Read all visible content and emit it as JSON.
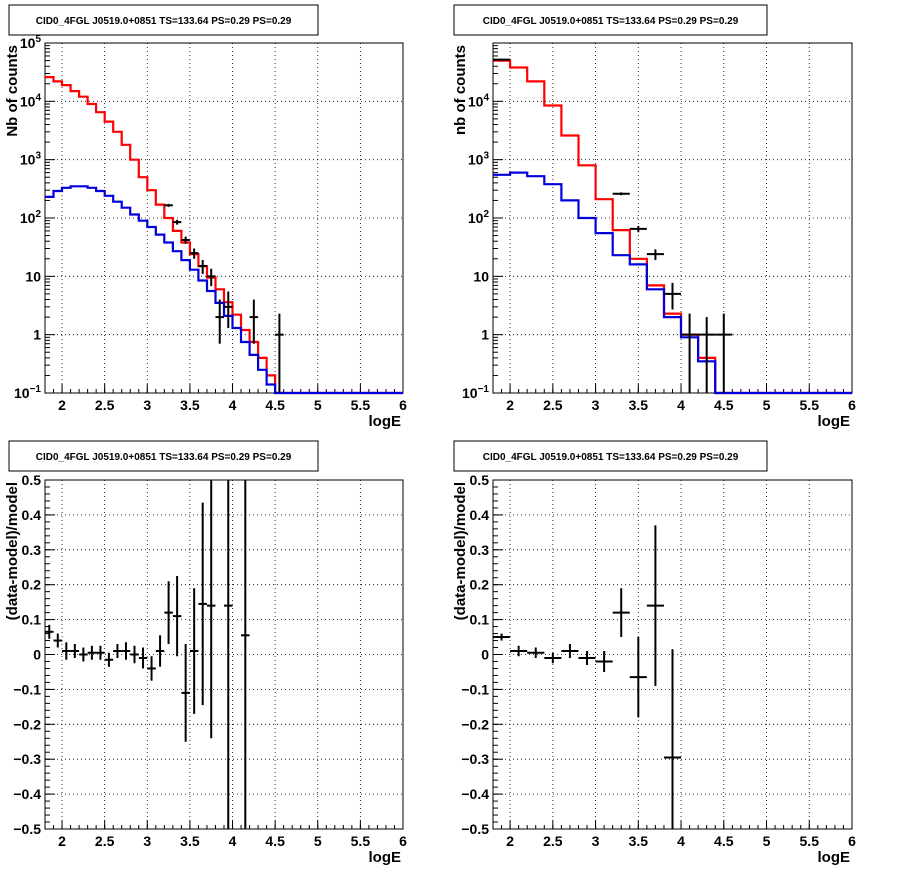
{
  "chart_data": [
    {
      "type": "line",
      "title": "CID0_4FGL J0519.0+0851 TS=133.64 PS=0.29 PS=0.29",
      "xlabel": "logE",
      "ylabel": "Nb of counts",
      "xlim": [
        1.8,
        6
      ],
      "ylim": [
        0.1,
        100000
      ],
      "yscale": "log",
      "grid": true,
      "x_ticks": [
        "2",
        "2.5",
        "3",
        "3.5",
        "4",
        "4.5",
        "5",
        "5.5",
        "6"
      ],
      "y_ticks": [
        "10^-1",
        "1",
        "10",
        "10^2",
        "10^3",
        "10^4",
        "10^5"
      ],
      "bin_edges": [
        1.8,
        1.9,
        2.0,
        2.1,
        2.2,
        2.3,
        2.4,
        2.5,
        2.6,
        2.7,
        2.8,
        2.9,
        3.0,
        3.1,
        3.2,
        3.3,
        3.4,
        3.5,
        3.6,
        3.7,
        3.8,
        3.9,
        4.0,
        4.1,
        4.2,
        4.3,
        4.4,
        4.5,
        4.6,
        4.7,
        4.8,
        4.9,
        5.0,
        5.1,
        5.2,
        5.3,
        5.4,
        5.5,
        5.6,
        5.7,
        5.8,
        5.9,
        6.0
      ],
      "series": [
        {
          "color": "#ff0000",
          "values": [
            26000,
            22000,
            19000,
            15000,
            12000,
            9000,
            6500,
            4500,
            3000,
            1800,
            1000,
            500,
            300,
            170,
            100,
            60,
            38,
            24,
            15,
            9.5,
            6,
            3.6,
            2.2,
            1.2,
            0.75,
            0.4,
            0.2,
            0.1,
            0.1,
            0.1,
            0.1,
            0.1,
            0.1,
            0.1,
            0.1,
            0.1,
            0.1,
            0.1,
            0.1,
            0.1,
            0.1,
            0.1
          ]
        },
        {
          "color": "#0000dd",
          "values": [
            230,
            290,
            330,
            350,
            350,
            330,
            290,
            240,
            190,
            150,
            115,
            90,
            70,
            52,
            38,
            27,
            19,
            13,
            8.5,
            5.6,
            3.5,
            2.1,
            1.3,
            0.75,
            0.45,
            0.25,
            0.14,
            0.1,
            0.1,
            0.1,
            0.1,
            0.1,
            0.1,
            0.1,
            0.1,
            0.1,
            0.1,
            0.1,
            0.1,
            0.1,
            0.1,
            0.1
          ]
        }
      ],
      "data_points": [
        {
          "x": 3.25,
          "y": 165,
          "ylo": 155,
          "yhi": 175
        },
        {
          "x": 3.35,
          "y": 85,
          "ylo": 77,
          "yhi": 93
        },
        {
          "x": 3.45,
          "y": 42,
          "ylo": 36,
          "yhi": 48
        },
        {
          "x": 3.55,
          "y": 25,
          "ylo": 20,
          "yhi": 30
        },
        {
          "x": 3.65,
          "y": 15,
          "ylo": 11,
          "yhi": 19
        },
        {
          "x": 3.75,
          "y": 10,
          "ylo": 6.8,
          "yhi": 13.5
        },
        {
          "x": 3.85,
          "y": 2,
          "ylo": 0.7,
          "yhi": 4.0
        },
        {
          "x": 3.95,
          "y": 3,
          "ylo": 1.3,
          "yhi": 5.5
        },
        {
          "x": 4.25,
          "y": 2,
          "ylo": 0.7,
          "yhi": 4.0
        },
        {
          "x": 4.55,
          "y": 1,
          "ylo": 0.1,
          "yhi": 2.3
        }
      ]
    },
    {
      "type": "line",
      "title": "CID0_4FGL J0519.0+0851 TS=133.64 PS=0.29 PS=0.29",
      "xlabel": "logE",
      "ylabel": "nb of counts",
      "xlim": [
        1.8,
        6
      ],
      "ylim": [
        0.1,
        100000
      ],
      "yscale": "log",
      "grid": true,
      "x_ticks": [
        "2",
        "2.5",
        "3",
        "3.5",
        "4",
        "4.5",
        "5",
        "5.5",
        "6"
      ],
      "y_ticks": [
        "10^-1",
        "1",
        "10",
        "10^2",
        "10^3",
        "10^4"
      ],
      "bin_edges": [
        1.8,
        2.0,
        2.2,
        2.4,
        2.6,
        2.8,
        3.0,
        3.2,
        3.4,
        3.6,
        3.8,
        4.0,
        4.2,
        4.4,
        4.6,
        4.8,
        5.0,
        5.2,
        5.4,
        5.6,
        5.8,
        6.0
      ],
      "series": [
        {
          "color": "#ff0000",
          "values": [
            50000,
            38000,
            22000,
            8500,
            2600,
            800,
            210,
            62,
            20,
            7,
            2.3,
            1.0,
            0.4,
            0.1,
            0.1,
            0.1,
            0.1,
            0.1,
            0.1,
            0.1,
            0.1
          ]
        },
        {
          "color": "#0000dd",
          "values": [
            550,
            600,
            520,
            380,
            200,
            100,
            55,
            23,
            16,
            6,
            2.0,
            0.9,
            0.35,
            0.1,
            0.1,
            0.1,
            0.1,
            0.1,
            0.1,
            0.1,
            0.1
          ]
        }
      ],
      "data_points": [
        {
          "x": 1.9,
          "y": 52000,
          "ylo": 51500,
          "yhi": 52500
        },
        {
          "x": 3.3,
          "y": 260,
          "ylo": 245,
          "yhi": 275
        },
        {
          "x": 3.5,
          "y": 65,
          "ylo": 57,
          "yhi": 73
        },
        {
          "x": 3.7,
          "y": 24,
          "ylo": 19,
          "yhi": 29
        },
        {
          "x": 3.9,
          "y": 5,
          "ylo": 2.7,
          "yhi": 7.7
        },
        {
          "x": 4.1,
          "y": 1,
          "ylo": 0.1,
          "yhi": 2.3
        },
        {
          "x": 4.3,
          "y": 1,
          "ylo": 0.1,
          "yhi": 2.0
        },
        {
          "x": 4.5,
          "y": 1,
          "ylo": 0.1,
          "yhi": 2.3
        }
      ]
    },
    {
      "type": "scatter",
      "title": "CID0_4FGL J0519.0+0851 TS=133.64 PS=0.29 PS=0.29",
      "xlabel": "logE",
      "ylabel": "(data-model)/model",
      "xlim": [
        1.8,
        6
      ],
      "ylim": [
        -0.5,
        0.5
      ],
      "grid": true,
      "x_ticks": [
        "2",
        "2.5",
        "3",
        "3.5",
        "4",
        "4.5",
        "5",
        "5.5",
        "6"
      ],
      "y_ticks": [
        "−0.5",
        "−0.4",
        "−0.3",
        "−0.2",
        "−0.1",
        "0",
        "0.1",
        "0.2",
        "0.3",
        "0.4",
        "0.5"
      ],
      "xerr": 0.05,
      "points": [
        {
          "x": 1.85,
          "y": 0.065,
          "err": 0.02
        },
        {
          "x": 1.95,
          "y": 0.04,
          "err": 0.02
        },
        {
          "x": 2.05,
          "y": 0.01,
          "err": 0.025
        },
        {
          "x": 2.15,
          "y": 0.01,
          "err": 0.02
        },
        {
          "x": 2.25,
          "y": 0.0,
          "err": 0.02
        },
        {
          "x": 2.35,
          "y": 0.005,
          "err": 0.02
        },
        {
          "x": 2.45,
          "y": 0.005,
          "err": 0.02
        },
        {
          "x": 2.55,
          "y": -0.015,
          "err": 0.02
        },
        {
          "x": 2.65,
          "y": 0.01,
          "err": 0.02
        },
        {
          "x": 2.75,
          "y": 0.01,
          "err": 0.025
        },
        {
          "x": 2.85,
          "y": 0.0,
          "err": 0.025
        },
        {
          "x": 2.95,
          "y": -0.01,
          "err": 0.03
        },
        {
          "x": 3.05,
          "y": -0.04,
          "err": 0.035
        },
        {
          "x": 3.15,
          "y": 0.01,
          "err": 0.045
        },
        {
          "x": 3.25,
          "y": 0.12,
          "err": 0.09
        },
        {
          "x": 3.35,
          "y": 0.11,
          "err": 0.115
        },
        {
          "x": 3.45,
          "y": -0.11,
          "err": 0.14
        },
        {
          "x": 3.55,
          "y": 0.01,
          "err": 0.18
        },
        {
          "x": 3.65,
          "y": 0.145,
          "err": 0.29
        },
        {
          "x": 3.75,
          "y": 0.14,
          "err": 0.38
        },
        {
          "x": 3.95,
          "y": 0.14,
          "err": 0.9
        },
        {
          "x": 4.15,
          "y": 0.055,
          "err": 1.2
        }
      ]
    },
    {
      "type": "scatter",
      "title": "CID0_4FGL J0519.0+0851 TS=133.64 PS=0.29 PS=0.29",
      "xlabel": "logE",
      "ylabel": "(data-model)/model",
      "xlim": [
        1.8,
        6
      ],
      "ylim": [
        -0.5,
        0.5
      ],
      "grid": true,
      "x_ticks": [
        "2",
        "2.5",
        "3",
        "3.5",
        "4",
        "4.5",
        "5",
        "5.5",
        "6"
      ],
      "y_ticks": [
        "−0.5",
        "−0.4",
        "−0.3",
        "−0.2",
        "−0.1",
        "0",
        "0.1",
        "0.2",
        "0.3",
        "0.4",
        "0.5"
      ],
      "xerr": 0.1,
      "points": [
        {
          "x": 1.9,
          "y": 0.05,
          "err": 0.01
        },
        {
          "x": 2.1,
          "y": 0.01,
          "err": 0.015
        },
        {
          "x": 2.3,
          "y": 0.005,
          "err": 0.015
        },
        {
          "x": 2.5,
          "y": -0.01,
          "err": 0.015
        },
        {
          "x": 2.7,
          "y": 0.01,
          "err": 0.02
        },
        {
          "x": 2.9,
          "y": -0.01,
          "err": 0.02
        },
        {
          "x": 3.1,
          "y": -0.02,
          "err": 0.03
        },
        {
          "x": 3.3,
          "y": 0.12,
          "err": 0.07
        },
        {
          "x": 3.5,
          "y": -0.065,
          "err": 0.115
        },
        {
          "x": 3.7,
          "y": 0.14,
          "err": 0.23
        },
        {
          "x": 3.9,
          "y": -0.295,
          "err": 0.31
        }
      ]
    }
  ]
}
